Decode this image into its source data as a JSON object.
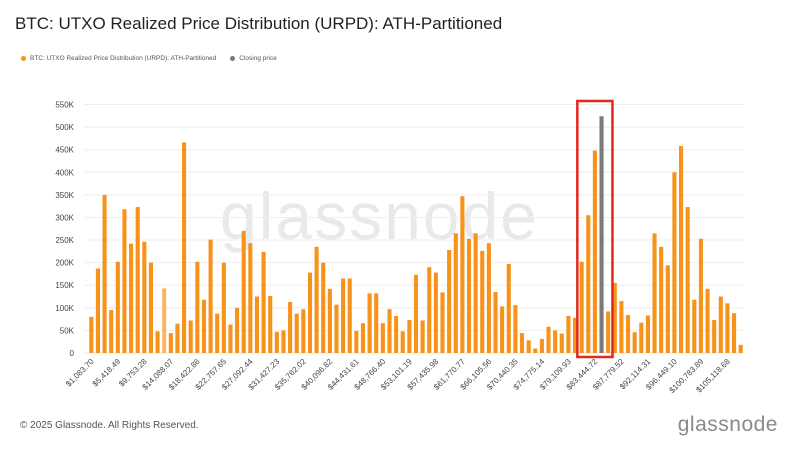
{
  "title": "BTC: UTXO Realized Price Distribution (URPD): ATH-Partitioned",
  "legend": {
    "series_label": "BTC: UTXO Realized Price Distribution (URPD): ATH-Partitioned",
    "closing_label": "Closing price"
  },
  "watermark": "glassnode",
  "footer": "© 2025 Glassnode. All Rights Reserved.",
  "brand": "glassnode",
  "colors": {
    "bar": "#f7931a",
    "bar_light": "#f6b66a",
    "closing": "#7a7a7a",
    "highlight": "#e0281c",
    "grid": "#eeeeee"
  },
  "chart_data": {
    "type": "bar",
    "title": "BTC: UTXO Realized Price Distribution (URPD): ATH-Partitioned",
    "xlabel": "",
    "ylabel": "",
    "ylim": [
      0,
      560000
    ],
    "y_ticks": [
      0,
      50000,
      100000,
      150000,
      200000,
      250000,
      300000,
      350000,
      400000,
      450000,
      500000,
      550000
    ],
    "y_tick_labels": [
      "0",
      "50K",
      "100K",
      "150K",
      "200K",
      "250K",
      "300K",
      "350K",
      "400K",
      "450K",
      "500K",
      "550K"
    ],
    "x_tick_labels": [
      "$1,083.70",
      "$5,418.49",
      "$9,753.28",
      "$14,088.07",
      "$18,422.86",
      "$22,757.65",
      "$27,092.44",
      "$31,427.23",
      "$35,762.02",
      "$40,096.82",
      "$44,431.61",
      "$48,766.40",
      "$53,101.19",
      "$57,435.98",
      "$61,770.77",
      "$66,105.56",
      "$70,440.35",
      "$74,775.14",
      "$79,109.93",
      "$83,444.72",
      "$87,779.52",
      "$92,114.31",
      "$96,449.10",
      "$100,783.89",
      "$105,118.68"
    ],
    "x_tick_every": 4,
    "values": [
      80000,
      187000,
      350000,
      95000,
      202000,
      318000,
      242000,
      323000,
      246000,
      200000,
      48000,
      143000,
      44000,
      65000,
      466000,
      72000,
      202000,
      118000,
      251000,
      87000,
      200000,
      63000,
      100000,
      270000,
      243000,
      125000,
      224000,
      126000,
      47000,
      50000,
      113000,
      87000,
      97000,
      178000,
      235000,
      200000,
      142000,
      107000,
      165000,
      165000,
      49000,
      66000,
      132000,
      132000,
      66000,
      97000,
      82000,
      48000,
      73000,
      173000,
      72000,
      190000,
      178000,
      134000,
      228000,
      265000,
      347000,
      253000,
      265000,
      226000,
      243000,
      135000,
      103000,
      197000,
      106000,
      44000,
      28000,
      10000,
      31000,
      58000,
      50000,
      43000,
      82000,
      78000,
      202000,
      305000,
      448000,
      524000,
      92000,
      155000,
      115000,
      84000,
      46000,
      67000,
      83000,
      265000,
      235000,
      194000,
      400000,
      458000,
      323000,
      118000,
      253000,
      142000,
      73000,
      125000,
      110000,
      88000,
      18000
    ],
    "light_indices": [
      11
    ],
    "closing_index": 77,
    "highlight_range": [
      74,
      78
    ]
  }
}
